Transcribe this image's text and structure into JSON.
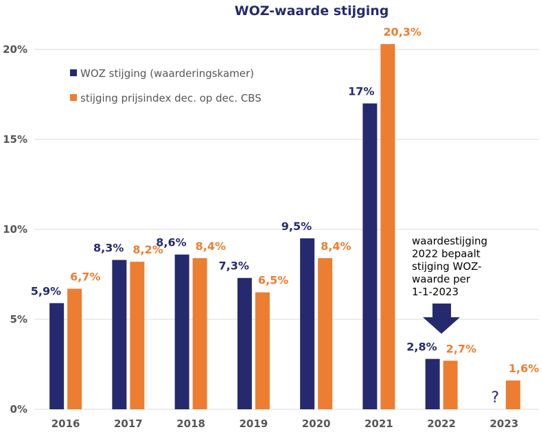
{
  "chart_data": {
    "type": "bar",
    "title": "WOZ-waarde stijging",
    "categories": [
      "2016",
      "2017",
      "2018",
      "2019",
      "2020",
      "2021",
      "2022",
      "2023"
    ],
    "series": [
      {
        "name": "WOZ stijging (waarderingskamer)",
        "color": "#252a6e",
        "values": [
          5.9,
          8.3,
          8.6,
          7.3,
          9.5,
          17,
          2.8,
          null
        ],
        "labels": [
          "5,9%",
          "8,3%",
          "8,6%",
          "7,3%",
          "9,5%",
          "17%",
          "2,8%",
          ""
        ]
      },
      {
        "name": "stijging prijsindex dec. op dec. CBS",
        "color": "#ed7d31",
        "values": [
          6.7,
          8.2,
          8.4,
          6.5,
          8.4,
          20.3,
          2.7,
          1.6
        ],
        "labels": [
          "6,7%",
          "8,2%",
          "8,4%",
          "6,5%",
          "8,4%",
          "20,3%",
          "2,7%",
          "1,6%"
        ]
      }
    ],
    "ylim": [
      0,
      20
    ],
    "yticks": [
      0,
      5,
      10,
      15,
      20
    ],
    "ytick_labels": [
      "0%",
      "5%",
      "10%",
      "15%",
      "20%"
    ],
    "grid": true,
    "legend_position": "top-left",
    "annotations": {
      "note_lines": [
        "waardestijging",
        "2022 bepaalt",
        "stijging WOZ-",
        "waarde per",
        "1-1-2023"
      ],
      "unknown_marker": "?"
    }
  }
}
